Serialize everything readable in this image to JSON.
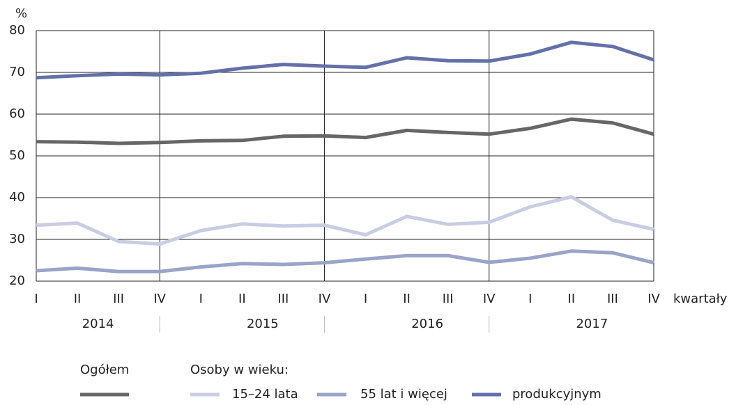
{
  "chart_data": {
    "type": "line",
    "y_unit": "%",
    "x_label": "kwartały",
    "categories": [
      "I",
      "II",
      "III",
      "IV",
      "I",
      "II",
      "III",
      "IV",
      "I",
      "II",
      "III",
      "IV",
      "I",
      "II",
      "III",
      "IV"
    ],
    "groups": [
      "2014",
      "2015",
      "2016",
      "2017"
    ],
    "legend_group_label": "Osoby w wieku:",
    "series": [
      {
        "name": "Ogółem",
        "color": "#666666",
        "values": [
          53.4,
          53.3,
          53.0,
          53.2,
          53.6,
          53.7,
          54.7,
          54.8,
          54.4,
          56.1,
          55.6,
          55.2,
          56.6,
          58.8,
          57.9,
          55.2
        ]
      },
      {
        "name": "15–24 lata",
        "color": "#c9cde3",
        "values": [
          33.4,
          33.9,
          29.5,
          28.9,
          32.1,
          33.7,
          33.2,
          33.4,
          31.1,
          35.5,
          33.6,
          34.1,
          37.8,
          40.2,
          34.6,
          32.4
        ]
      },
      {
        "name": "55 lat i więcej",
        "color": "#9aa3c8",
        "values": [
          22.5,
          23.1,
          22.3,
          22.3,
          23.4,
          24.2,
          24.0,
          24.4,
          25.3,
          26.1,
          26.1,
          24.5,
          25.5,
          27.2,
          26.8,
          24.4
        ]
      },
      {
        "name": "produkcyjnym",
        "color": "#6470a8",
        "values": [
          68.7,
          69.2,
          69.6,
          69.4,
          69.8,
          71.0,
          71.9,
          71.5,
          71.2,
          73.5,
          72.8,
          72.7,
          74.4,
          77.2,
          76.2,
          73.0
        ]
      }
    ],
    "ylim": [
      20,
      80
    ],
    "yticks": [
      20,
      30,
      40,
      50,
      60,
      70,
      80
    ],
    "grid": true
  }
}
